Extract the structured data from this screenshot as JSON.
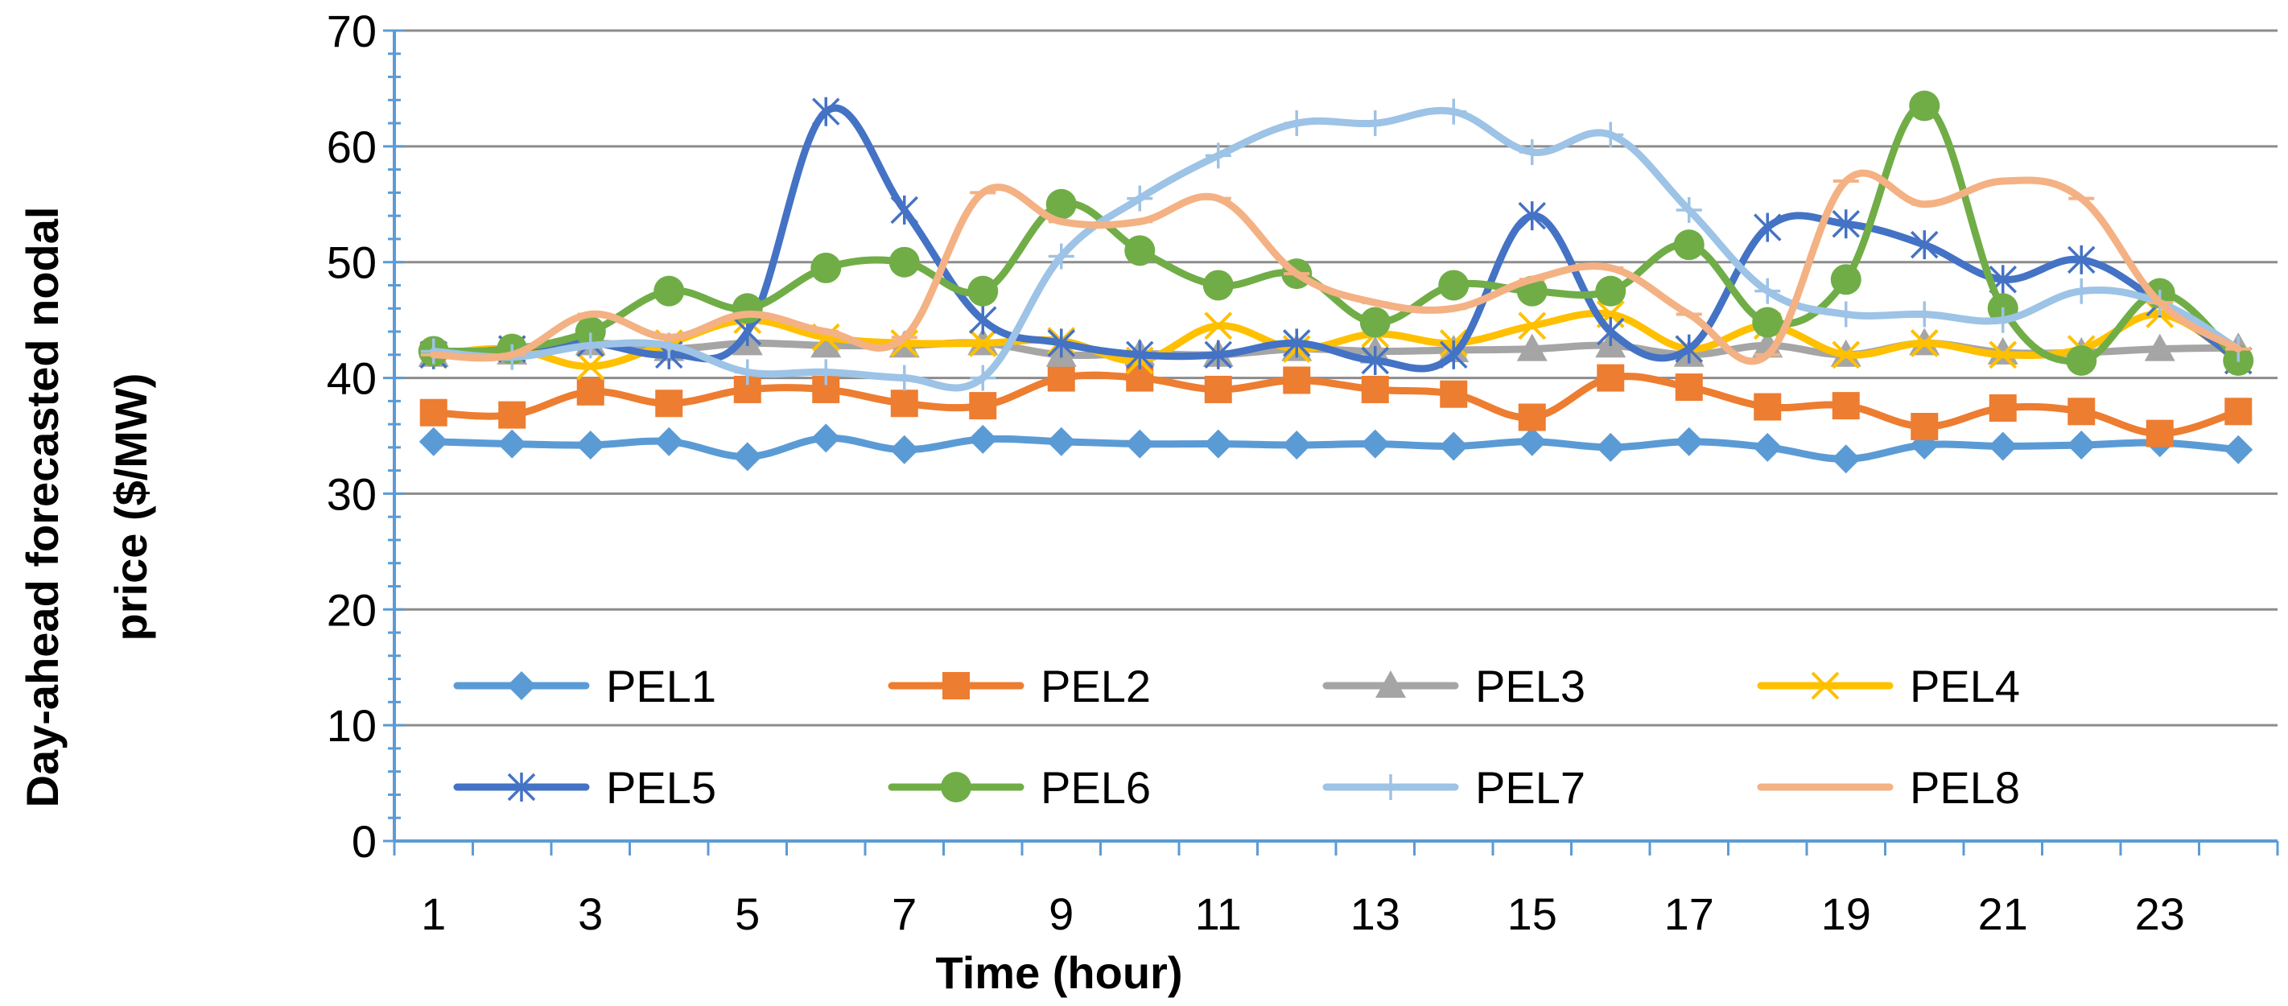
{
  "chart_data": {
    "type": "line",
    "title": "",
    "xlabel": "Time (hour)",
    "ylabel_lines": [
      "Day-ahead forecasted nodal",
      "price ($/MW)"
    ],
    "x": [
      1,
      2,
      3,
      4,
      5,
      6,
      7,
      8,
      9,
      10,
      11,
      12,
      13,
      14,
      15,
      16,
      17,
      18,
      19,
      20,
      21,
      22,
      23,
      24
    ],
    "x_tick_labels": [
      "1",
      "3",
      "5",
      "7",
      "9",
      "11",
      "13",
      "15",
      "17",
      "19",
      "21",
      "23"
    ],
    "x_tick_values": [
      1,
      3,
      5,
      7,
      9,
      11,
      13,
      15,
      17,
      19,
      21,
      23
    ],
    "ylim": [
      0,
      70
    ],
    "y_ticks": [
      0,
      10,
      20,
      30,
      40,
      50,
      60,
      70
    ],
    "grid": "horizontal",
    "legend_position": "inside-bottom",
    "series": [
      {
        "name": "PEL1",
        "color": "#5B9BD5",
        "marker": "diamond",
        "values": [
          34.5,
          34.3,
          34.2,
          34.5,
          33.2,
          34.8,
          33.8,
          34.7,
          34.5,
          34.3,
          34.3,
          34.2,
          34.3,
          34.1,
          34.5,
          34,
          34.5,
          34,
          33,
          34.2,
          34.1,
          34.2,
          34.4,
          33.8
        ]
      },
      {
        "name": "PEL2",
        "color": "#ED7D31",
        "marker": "square",
        "values": [
          37,
          36.8,
          38.8,
          37.8,
          39,
          39,
          37.8,
          37.6,
          40,
          40,
          39,
          39.8,
          39,
          38.6,
          36.6,
          40,
          39.2,
          37.5,
          37.6,
          35.8,
          37.4,
          37.1,
          35.2,
          37.1
        ]
      },
      {
        "name": "PEL3",
        "color": "#A5A5A5",
        "marker": "triangle",
        "values": [
          42,
          42.2,
          43,
          42.5,
          43,
          42.8,
          42.8,
          43,
          42,
          42.1,
          42,
          42.5,
          42.3,
          42.4,
          42.5,
          42.8,
          42,
          42.8,
          42,
          43,
          42.2,
          42.2,
          42.5,
          42.6
        ]
      },
      {
        "name": "PEL4",
        "color": "#FFC000",
        "marker": "x",
        "values": [
          42,
          42.5,
          41,
          43,
          45,
          43.5,
          43,
          43,
          43.2,
          41.5,
          44.5,
          42.5,
          43.8,
          43,
          44.5,
          45.5,
          42.5,
          44.5,
          42,
          43,
          42,
          42.5,
          45.5,
          41.5
        ]
      },
      {
        "name": "PEL5",
        "color": "#4472C4",
        "marker": "star",
        "values": [
          42,
          42.5,
          43,
          42,
          44,
          63,
          54.5,
          45,
          43,
          42,
          42,
          43,
          41.5,
          42,
          54,
          44,
          42.5,
          53,
          53.3,
          51.5,
          48.5,
          50.2,
          46.5,
          41.5
        ]
      },
      {
        "name": "PEL6",
        "color": "#70AD47",
        "marker": "circle",
        "values": [
          42.3,
          42.5,
          44,
          47.5,
          46,
          49.5,
          50,
          47.5,
          55,
          51,
          48,
          49,
          44.8,
          48,
          47.5,
          47.5,
          51.5,
          44.8,
          48.5,
          63.5,
          46,
          41.5,
          47.3,
          41.5
        ]
      },
      {
        "name": "PEL7",
        "color": "#9DC3E6",
        "marker": "plus",
        "values": [
          42.3,
          41.8,
          42.8,
          42.8,
          40.5,
          40.5,
          40,
          40,
          50.5,
          55.5,
          59.2,
          62,
          62,
          63,
          59.5,
          61,
          54.5,
          47.5,
          45.5,
          45.5,
          45,
          47.5,
          46.5,
          42.5
        ]
      },
      {
        "name": "PEL8",
        "color": "#F4B183",
        "marker": "dash",
        "values": [
          42,
          42,
          45.5,
          43.5,
          45.5,
          44,
          43.5,
          56,
          53.5,
          53.5,
          55.5,
          49,
          46.5,
          46,
          48.5,
          49.5,
          45.5,
          42,
          57,
          55,
          57,
          55.5,
          46.5,
          42.5
        ]
      }
    ]
  }
}
